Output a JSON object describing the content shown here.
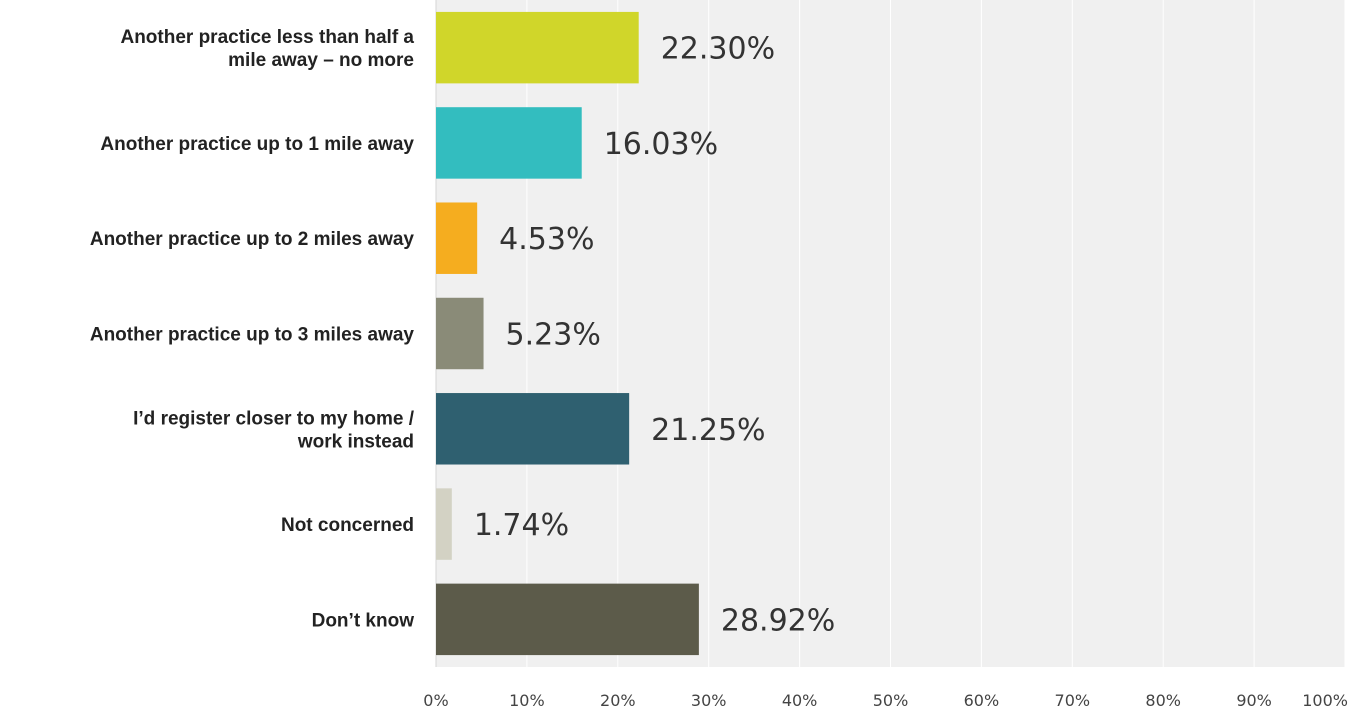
{
  "chart_data": {
    "type": "bar",
    "orientation": "horizontal",
    "categories": [
      "Another practice less than half a mile away – no more",
      "Another practice up to 1 mile away",
      "Another practice up to 2 miles away",
      "Another practice up to 3 miles away",
      "I’d register closer to my home / work instead",
      "Not concerned",
      "Don’t know"
    ],
    "category_lines": [
      [
        "Another practice less than half a",
        "mile away – no more"
      ],
      [
        "Another practice up to 1 mile away"
      ],
      [
        "Another practice up to 2 miles away"
      ],
      [
        "Another practice up to 3 miles away"
      ],
      [
        "I’d register closer to my home /",
        "work instead"
      ],
      [
        "Not concerned"
      ],
      [
        "Don’t know"
      ]
    ],
    "values": [
      22.3,
      16.03,
      4.53,
      5.23,
      21.25,
      1.74,
      28.92
    ],
    "value_labels": [
      "22.30%",
      "16.03%",
      "4.53%",
      "5.23%",
      "21.25%",
      "1.74%",
      "28.92%"
    ],
    "colors": [
      "#d0d62a",
      "#33bdbf",
      "#f5ad1f",
      "#8a8b78",
      "#2f6070",
      "#d3d2c4",
      "#5c5b4a"
    ],
    "xlim": [
      0,
      100
    ],
    "x_ticks": [
      "0%",
      "10%",
      "20%",
      "30%",
      "40%",
      "50%",
      "60%",
      "70%",
      "80%",
      "90%",
      "100%"
    ],
    "grid": true,
    "plot_background": "#f0f0f0",
    "gridline_color": "#ffffff",
    "title": "",
    "xlabel": "",
    "ylabel": ""
  }
}
